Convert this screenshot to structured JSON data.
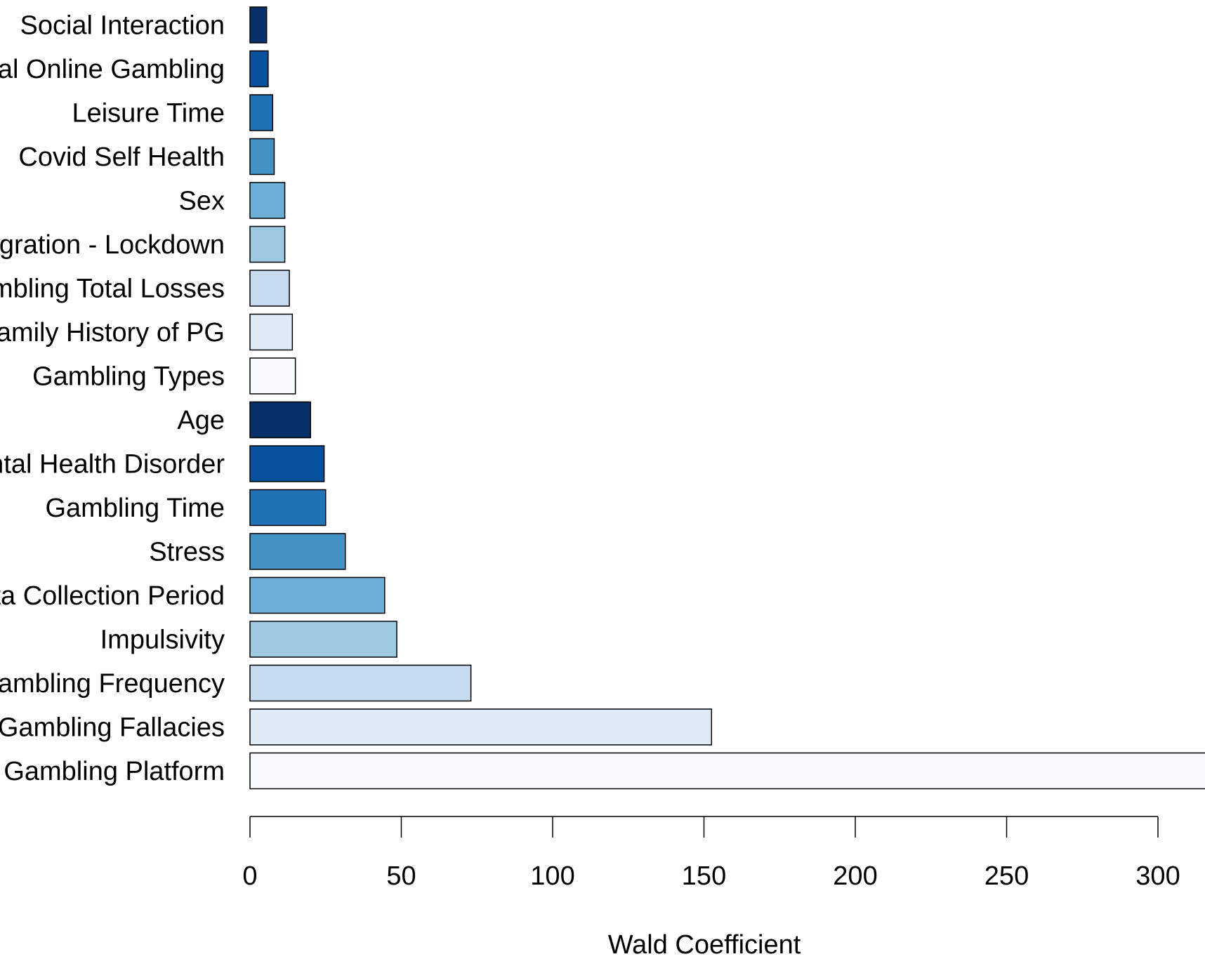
{
  "chart_data": {
    "type": "bar",
    "orientation": "horizontal",
    "title": "",
    "xlabel": "Wald Coefficient",
    "ylabel": "",
    "xlim": [
      0,
      300
    ],
    "x_ticks": [
      0,
      50,
      100,
      150,
      200,
      250,
      300
    ],
    "x_tick_labels": [
      "0",
      "50",
      "100",
      "150",
      "200",
      "250",
      "300"
    ],
    "grid": false,
    "categories": [
      "Social Interaction",
      "Legal Online Gambling",
      "Leisure Time",
      "Covid Self Health",
      "Sex",
      "Migration - Lockdown",
      "Gambling Total Losses",
      "Family History of PG",
      "Gambling Types",
      "Age",
      "Mental Health Disorder",
      "Gambling Time",
      "Stress",
      "Data Collection Period",
      "Impulsivity",
      "Gambling Frequency",
      "Gambling Fallacies",
      "Gambling Platform"
    ],
    "values": [
      5.5,
      6,
      7.5,
      8,
      11.5,
      11.5,
      13,
      14,
      15,
      20,
      24.5,
      25,
      31.5,
      44.5,
      48.5,
      73,
      152.5,
      320
    ],
    "colors": [
      "#08306b",
      "#08519c",
      "#2171b5",
      "#4292c6",
      "#6baed6",
      "#9ecae1",
      "#c6dbef",
      "#deebf7",
      "#f7fbff",
      "#08306b",
      "#08519c",
      "#2171b5",
      "#4292c6",
      "#6baed6",
      "#9ecae1",
      "#c6dbef",
      "#deebf7",
      "#f7fbff"
    ],
    "bar_border_color": "#000000"
  }
}
